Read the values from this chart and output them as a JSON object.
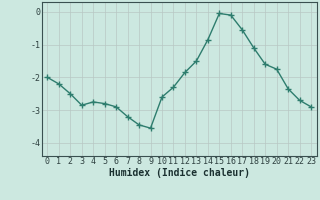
{
  "x": [
    0,
    1,
    2,
    3,
    4,
    5,
    6,
    7,
    8,
    9,
    10,
    11,
    12,
    13,
    14,
    15,
    16,
    17,
    18,
    19,
    20,
    21,
    22,
    23
  ],
  "y": [
    -2.0,
    -2.2,
    -2.5,
    -2.85,
    -2.75,
    -2.8,
    -2.9,
    -3.2,
    -3.45,
    -3.55,
    -2.6,
    -2.3,
    -1.85,
    -1.5,
    -0.85,
    -0.05,
    -0.1,
    -0.55,
    -1.1,
    -1.6,
    -1.75,
    -2.35,
    -2.7,
    -2.9
  ],
  "line_color": "#2e7d6e",
  "marker": "+",
  "marker_size": 4,
  "marker_linewidth": 1.0,
  "line_width": 1.0,
  "bg_color": "#cce8e0",
  "grid_color": "#b8c8c4",
  "xlabel": "Humidex (Indice chaleur)",
  "xlabel_fontsize": 7,
  "tick_fontsize": 6,
  "ylim": [
    -4.4,
    0.3
  ],
  "xlim": [
    -0.5,
    23.5
  ],
  "yticks": [
    0,
    -1,
    -2,
    -3,
    -4
  ],
  "xticks": [
    0,
    1,
    2,
    3,
    4,
    5,
    6,
    7,
    8,
    9,
    10,
    11,
    12,
    13,
    14,
    15,
    16,
    17,
    18,
    19,
    20,
    21,
    22,
    23
  ]
}
